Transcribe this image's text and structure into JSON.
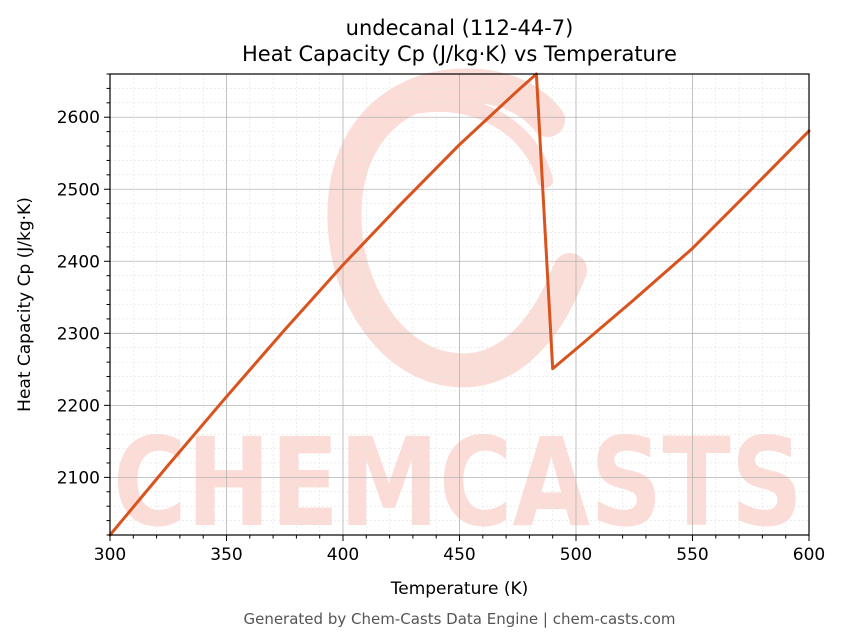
{
  "chart_data": {
    "type": "line",
    "title_lines": [
      "undecanal (112-44-7)",
      "Heat Capacity Cp (J/kg·K) vs Temperature"
    ],
    "xlabel": "Temperature (K)",
    "ylabel": "Heat Capacity Cp (J/kg·K)",
    "xlim": [
      300,
      600
    ],
    "ylim": [
      2020,
      2660
    ],
    "xticks": [
      300,
      350,
      400,
      450,
      500,
      550,
      600
    ],
    "yticks": [
      2100,
      2200,
      2300,
      2400,
      2500,
      2600
    ],
    "grid": true,
    "series": [
      {
        "color": "#d9531e",
        "x": [
          300,
          325,
          350,
          375,
          400,
          425,
          450,
          475,
          483,
          490,
          500,
          525,
          550,
          575,
          600
        ],
        "y": [
          2020,
          2117,
          2212,
          2305,
          2395,
          2480,
          2562,
          2637,
          2660,
          2251,
          2278,
          2347,
          2418,
          2499,
          2581
        ]
      }
    ]
  },
  "watermark": {
    "text": "CHEMCASTS",
    "color": "#fbd9d3"
  },
  "footer": "Generated by Chem-Casts Data Engine | chem-casts.com"
}
